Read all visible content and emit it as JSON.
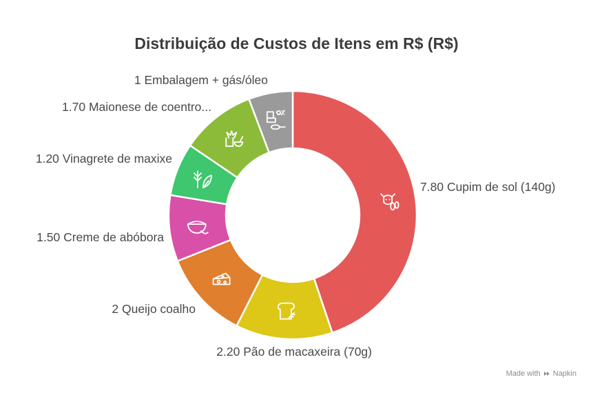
{
  "chart_data": {
    "type": "pie",
    "donut": true,
    "title": "Distribuição de Custos de Itens em R$ (R$)",
    "slices": [
      {
        "label": "Cupim de sol (140g)",
        "value": 7.8,
        "value_text": "7.80",
        "color": "#e45858",
        "icon": "cow-icon"
      },
      {
        "label": "Pão de macaxeira (70g)",
        "value": 2.2,
        "value_text": "2.20",
        "color": "#ddc717",
        "icon": "bread-icon"
      },
      {
        "label": "Queijo coalho",
        "value": 2,
        "value_text": "2",
        "color": "#e07f2e",
        "icon": "cheese-icon"
      },
      {
        "label": "Creme de abóbora",
        "value": 1.5,
        "value_text": "1.50",
        "color": "#d950a8",
        "icon": "soup-bowl-icon"
      },
      {
        "label": "Vinagrete de maxixe",
        "value": 1.2,
        "value_text": "1.20",
        "color": "#3ec76e",
        "icon": "herb-leaf-icon"
      },
      {
        "label": "Maionese de coentro...",
        "value": 1.7,
        "value_text": "1.70",
        "color": "#8cbb3a",
        "icon": "cilantro-bowl-icon"
      },
      {
        "label": "Embalagem + gás/óleo",
        "value": 1,
        "value_text": "1",
        "color": "#9a9a9a",
        "icon": "package-gas-icon"
      }
    ]
  },
  "watermark": {
    "prefix": "Made with",
    "brand": "Napkin"
  }
}
